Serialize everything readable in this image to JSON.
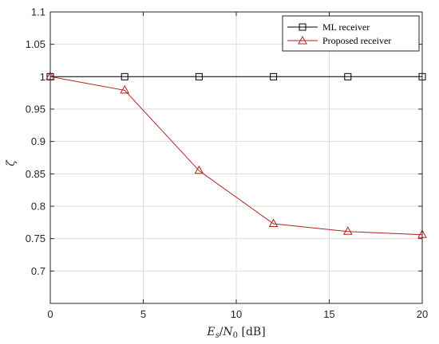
{
  "chart_data": {
    "type": "line",
    "x": [
      0,
      4,
      8,
      12,
      16,
      20
    ],
    "series": [
      {
        "name": "ML receiver",
        "values": [
          1,
          1,
          1,
          1,
          1,
          1
        ],
        "color": "#000000",
        "marker": "square"
      },
      {
        "name": "Proposed receiver",
        "values": [
          1,
          0.979,
          0.855,
          0.773,
          0.761,
          0.756
        ],
        "color": "#b2221e",
        "marker": "triangle"
      }
    ],
    "xlabel": "E_s/N_0 [dB]",
    "xlabel_parts": {
      "E": "E",
      "s": "s",
      "slash": "/",
      "N": "N",
      "zero": "0",
      "unit": " [dB]"
    },
    "ylabel": "ζ",
    "xlim": [
      0,
      20
    ],
    "ylim": [
      0.65,
      1.1
    ],
    "xticks": [
      "0",
      "5",
      "10",
      "15",
      "20"
    ],
    "yticks": [
      "0.7",
      "0.75",
      "0.8",
      "0.85",
      "0.9",
      "0.95",
      "1",
      "1.05",
      "1.1"
    ],
    "grid": true,
    "legend_position": "top-right"
  }
}
